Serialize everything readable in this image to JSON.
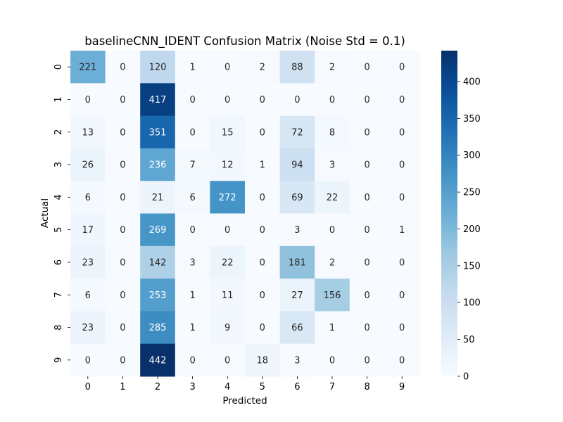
{
  "chart_data": {
    "type": "heatmap",
    "title": "baselineCNN_IDENT Confusion Matrix (Noise Std = 0.1)",
    "xlabel": "Predicted",
    "ylabel": "Actual",
    "x_categories": [
      "0",
      "1",
      "2",
      "3",
      "4",
      "5",
      "6",
      "7",
      "8",
      "9"
    ],
    "y_categories": [
      "0",
      "1",
      "2",
      "3",
      "4",
      "5",
      "6",
      "7",
      "8",
      "9"
    ],
    "values": [
      [
        221,
        0,
        120,
        1,
        0,
        2,
        88,
        2,
        0,
        0
      ],
      [
        0,
        0,
        417,
        0,
        0,
        0,
        0,
        0,
        0,
        0
      ],
      [
        13,
        0,
        351,
        0,
        15,
        0,
        72,
        8,
        0,
        0
      ],
      [
        26,
        0,
        236,
        7,
        12,
        1,
        94,
        3,
        0,
        0
      ],
      [
        6,
        0,
        21,
        6,
        272,
        0,
        69,
        22,
        0,
        0
      ],
      [
        17,
        0,
        269,
        0,
        0,
        0,
        3,
        0,
        0,
        1
      ],
      [
        23,
        0,
        142,
        3,
        22,
        0,
        181,
        2,
        0,
        0
      ],
      [
        6,
        0,
        253,
        1,
        11,
        0,
        27,
        156,
        0,
        0
      ],
      [
        23,
        0,
        285,
        1,
        9,
        0,
        66,
        1,
        0,
        0
      ],
      [
        0,
        0,
        442,
        0,
        0,
        18,
        3,
        0,
        0,
        0
      ]
    ],
    "colormap": "Blues",
    "colorbar": {
      "range": [
        0,
        442
      ],
      "ticks": [
        0,
        50,
        100,
        150,
        200,
        250,
        300,
        350,
        400
      ]
    }
  }
}
